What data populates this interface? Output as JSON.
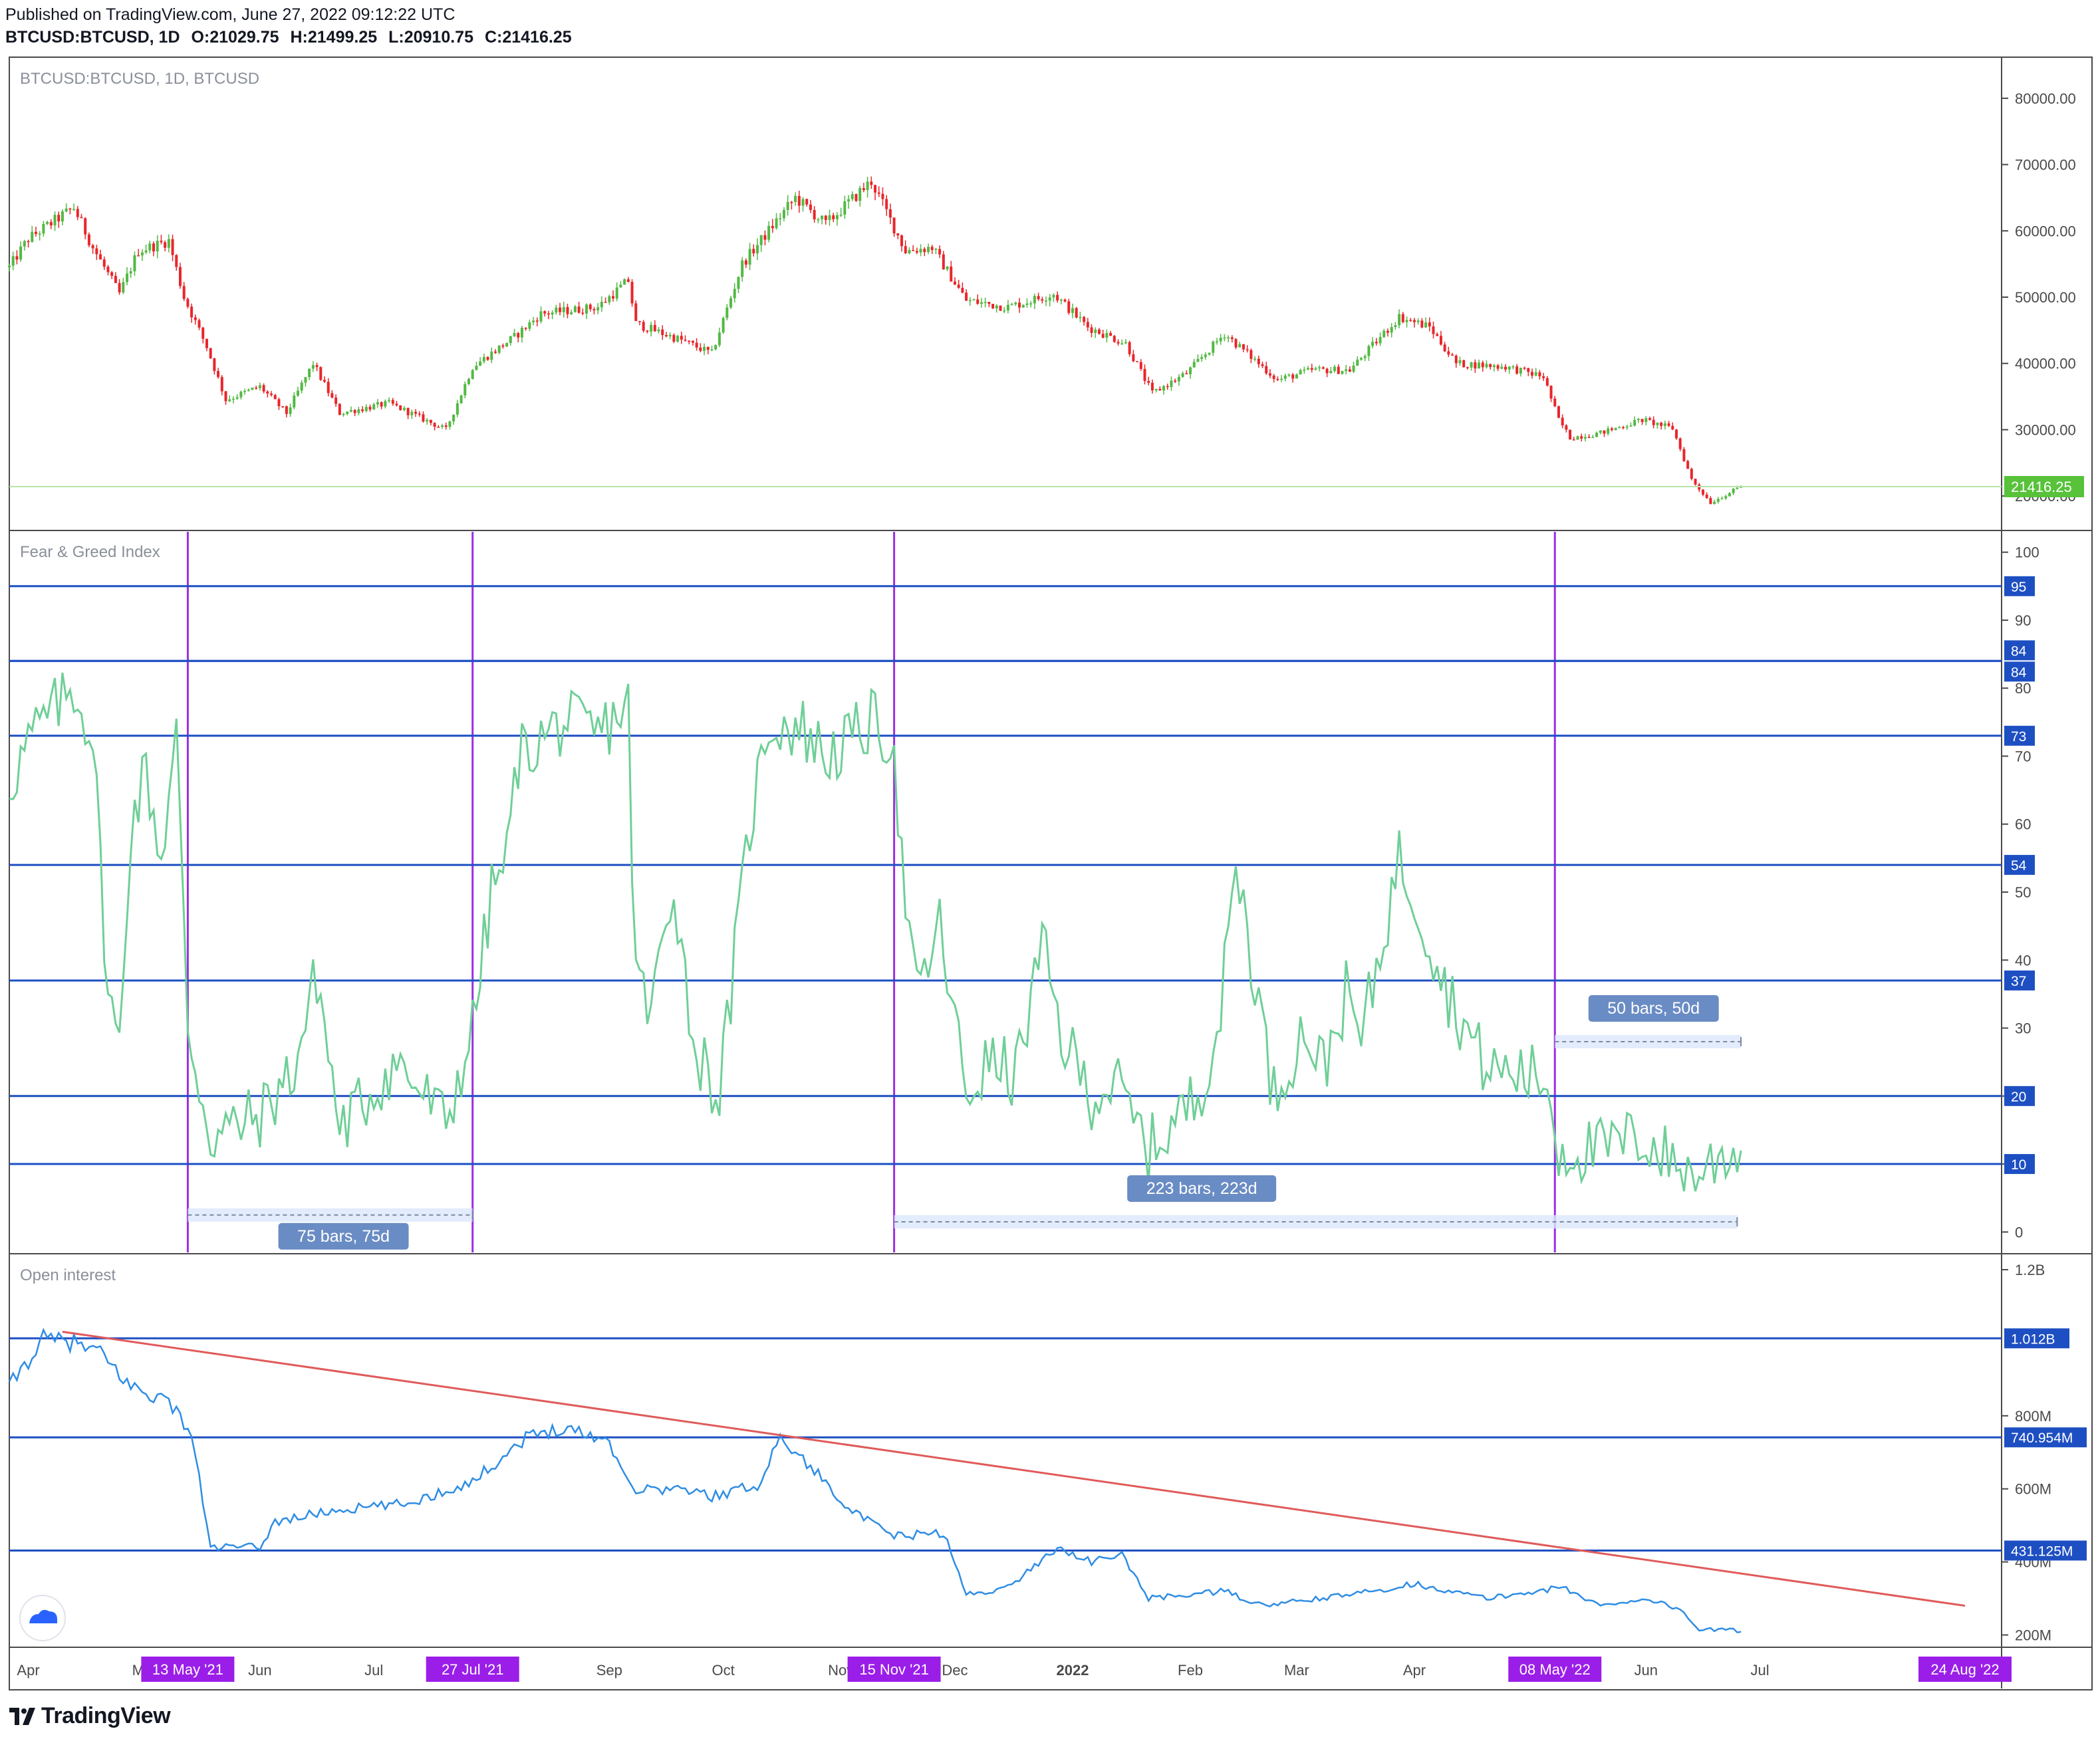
{
  "header": {
    "published": "Published on TradingView.com, June 27, 2022 09:12:22 UTC",
    "symbol": "BTCUSD:BTCUSD, 1D",
    "o_label": "O:",
    "o": "21029.75",
    "h_label": "H:",
    "h": "21499.25",
    "l_label": "L:",
    "l": "20910.75",
    "c_label": "C:",
    "c": "21416.25"
  },
  "brand": "TradingView",
  "colors": {
    "up": "#53b944",
    "down": "#e8262b",
    "fgi_line": "#6fcf97",
    "oi_line": "#2f8de4",
    "hline": "#1e4fc2",
    "vline": "#9b30e0",
    "trend": "#e05a5a",
    "price_label_bg": "#57c23a",
    "date_badge_bg": "#9b1ee8",
    "measure_badge_bg": "#6a8cc4"
  },
  "chart_data": [
    {
      "type": "candlestick",
      "title": "BTCUSD:BTCUSD, 1D, BTCUSD",
      "ylim": [
        15000,
        86000
      ],
      "y_ticks": [
        20000,
        30000,
        40000,
        50000,
        60000,
        70000,
        80000
      ],
      "y_tick_labels": [
        "20000.00",
        "30000.00",
        "40000.00",
        "50000.00",
        "60000.00",
        "70000.00",
        "80000.00"
      ],
      "last_price": 21416.25,
      "last_price_label": "21416.25",
      "x_start": "2021-03-27",
      "x_end": "2022-06-26",
      "anchors": [
        [
          "2021-03-27",
          54500
        ],
        [
          "2021-04-01",
          58800
        ],
        [
          "2021-04-13",
          63500
        ],
        [
          "2021-04-18",
          57500
        ],
        [
          "2021-04-25",
          50500
        ],
        [
          "2021-04-30",
          57000
        ],
        [
          "2021-05-08",
          58500
        ],
        [
          "2021-05-12",
          50000
        ],
        [
          "2021-05-18",
          42500
        ],
        [
          "2021-05-23",
          34500
        ],
        [
          "2021-06-01",
          36500
        ],
        [
          "2021-06-08",
          32500
        ],
        [
          "2021-06-15",
          40000
        ],
        [
          "2021-06-22",
          32500
        ],
        [
          "2021-07-05",
          34000
        ],
        [
          "2021-07-20",
          30000
        ],
        [
          "2021-07-27",
          39500
        ],
        [
          "2021-08-07",
          44000
        ],
        [
          "2021-08-14",
          47500
        ],
        [
          "2021-08-29",
          48500
        ],
        [
          "2021-09-06",
          52500
        ],
        [
          "2021-09-08",
          46000
        ],
        [
          "2021-09-20",
          43500
        ],
        [
          "2021-09-28",
          41500
        ],
        [
          "2021-10-06",
          55000
        ],
        [
          "2021-10-15",
          61500
        ],
        [
          "2021-10-20",
          65000
        ],
        [
          "2021-10-28",
          61000
        ],
        [
          "2021-11-09",
          67500
        ],
        [
          "2021-11-18",
          57000
        ],
        [
          "2021-11-25",
          57500
        ],
        [
          "2021-12-04",
          49500
        ],
        [
          "2021-12-15",
          48500
        ],
        [
          "2021-12-27",
          50500
        ],
        [
          "2022-01-05",
          45500
        ],
        [
          "2022-01-15",
          43000
        ],
        [
          "2022-01-22",
          35500
        ],
        [
          "2022-01-31",
          38500
        ],
        [
          "2022-02-10",
          44500
        ],
        [
          "2022-02-24",
          37500
        ],
        [
          "2022-03-05",
          39000
        ],
        [
          "2022-03-15",
          39000
        ],
        [
          "2022-03-28",
          47000
        ],
        [
          "2022-04-05",
          45500
        ],
        [
          "2022-04-12",
          40000
        ],
        [
          "2022-04-25",
          39500
        ],
        [
          "2022-05-05",
          38000
        ],
        [
          "2022-05-09",
          31500
        ],
        [
          "2022-05-12",
          28800
        ],
        [
          "2022-05-20",
          29500
        ],
        [
          "2022-05-31",
          31500
        ],
        [
          "2022-06-08",
          30200
        ],
        [
          "2022-06-13",
          22500
        ],
        [
          "2022-06-18",
          19000
        ],
        [
          "2022-06-26",
          21416
        ]
      ]
    },
    {
      "type": "line",
      "title": "Fear & Greed Index",
      "ylim": [
        -3,
        103
      ],
      "y_ticks": [
        0,
        10,
        20,
        30,
        40,
        50,
        60,
        70,
        80,
        90,
        100
      ],
      "hlines": [
        95,
        84,
        84,
        73,
        54,
        37,
        20,
        10
      ],
      "hline_labels": [
        "95",
        "84",
        "84",
        "73",
        "54",
        "37",
        "20",
        "10"
      ],
      "anchors": [
        [
          "2021-03-27",
          66
        ],
        [
          "2021-04-02",
          73
        ],
        [
          "2021-04-13",
          80
        ],
        [
          "2021-04-18",
          73
        ],
        [
          "2021-04-22",
          35
        ],
        [
          "2021-04-25",
          27
        ],
        [
          "2021-04-28",
          60
        ],
        [
          "2021-05-02",
          68
        ],
        [
          "2021-05-06",
          55
        ],
        [
          "2021-05-10",
          73
        ],
        [
          "2021-05-13",
          30
        ],
        [
          "2021-05-19",
          14
        ],
        [
          "2021-06-01",
          17
        ],
        [
          "2021-06-10",
          24
        ],
        [
          "2021-06-16",
          38
        ],
        [
          "2021-06-22",
          15
        ],
        [
          "2021-07-07",
          25
        ],
        [
          "2021-07-20",
          16
        ],
        [
          "2021-07-27",
          30
        ],
        [
          "2021-08-01",
          50
        ],
        [
          "2021-08-05",
          55
        ],
        [
          "2021-08-08",
          70
        ],
        [
          "2021-08-20",
          75
        ],
        [
          "2021-08-29",
          73
        ],
        [
          "2021-09-06",
          78
        ],
        [
          "2021-09-07",
          48
        ],
        [
          "2021-09-11",
          30
        ],
        [
          "2021-09-18",
          52
        ],
        [
          "2021-09-23",
          28
        ],
        [
          "2021-09-30",
          20
        ],
        [
          "2021-10-04",
          40
        ],
        [
          "2021-10-08",
          60
        ],
        [
          "2021-10-13",
          75
        ],
        [
          "2021-10-22",
          74
        ],
        [
          "2021-10-28",
          70
        ],
        [
          "2021-11-03",
          72
        ],
        [
          "2021-11-09",
          75
        ],
        [
          "2021-11-15",
          72
        ],
        [
          "2021-11-17",
          54
        ],
        [
          "2021-11-21",
          34
        ],
        [
          "2021-11-27",
          45
        ],
        [
          "2021-12-04",
          20
        ],
        [
          "2021-12-10",
          25
        ],
        [
          "2021-12-17",
          23
        ],
        [
          "2021-12-24",
          42
        ],
        [
          "2021-12-29",
          29
        ],
        [
          "2022-01-06",
          20
        ],
        [
          "2022-01-12",
          22
        ],
        [
          "2022-01-21",
          12
        ],
        [
          "2022-02-03",
          20
        ],
        [
          "2022-02-09",
          32
        ],
        [
          "2022-02-13",
          55
        ],
        [
          "2022-02-23",
          20
        ],
        [
          "2022-03-03",
          30
        ],
        [
          "2022-03-08",
          24
        ],
        [
          "2022-03-14",
          35
        ],
        [
          "2022-03-18",
          28
        ],
        [
          "2022-03-28",
          55
        ],
        [
          "2022-04-02",
          48
        ],
        [
          "2022-04-10",
          35
        ],
        [
          "2022-04-20",
          24
        ],
        [
          "2022-05-02",
          23
        ],
        [
          "2022-05-06",
          22
        ],
        [
          "2022-05-09",
          12
        ],
        [
          "2022-05-20",
          12
        ],
        [
          "2022-05-31",
          14
        ],
        [
          "2022-06-13",
          8
        ],
        [
          "2022-06-23",
          12
        ],
        [
          "2022-06-26",
          12
        ]
      ]
    },
    {
      "type": "line",
      "title": "Open interest",
      "ylim": [
        170,
        1240
      ],
      "y_ticks": [
        200,
        400,
        600,
        800,
        1200
      ],
      "y_tick_labels": [
        "200M",
        "400M",
        "600M",
        "800M",
        "1.2B"
      ],
      "y_units": "millions USD",
      "hlines": [
        1012,
        740.954,
        431.125
      ],
      "hline_labels": [
        "1.012B",
        "740.954M",
        "431.125M"
      ],
      "trendline": [
        [
          "2021-04-10",
          1030
        ],
        [
          "2022-08-24",
          280
        ]
      ],
      "anchors": [
        [
          "2021-03-27",
          880
        ],
        [
          "2021-04-05",
          1010
        ],
        [
          "2021-04-13",
          1000
        ],
        [
          "2021-04-20",
          970
        ],
        [
          "2021-04-28",
          880
        ],
        [
          "2021-05-08",
          840
        ],
        [
          "2021-05-14",
          750
        ],
        [
          "2021-05-19",
          440
        ],
        [
          "2021-06-01",
          440
        ],
        [
          "2021-06-05",
          510
        ],
        [
          "2021-06-20",
          540
        ],
        [
          "2021-07-10",
          560
        ],
        [
          "2021-07-27",
          620
        ],
        [
          "2021-08-10",
          740
        ],
        [
          "2021-08-20",
          770
        ],
        [
          "2021-09-01",
          730
        ],
        [
          "2021-09-07",
          600
        ],
        [
          "2021-09-20",
          600
        ],
        [
          "2021-09-28",
          580
        ],
        [
          "2021-10-10",
          610
        ],
        [
          "2021-10-16",
          740
        ],
        [
          "2021-10-24",
          660
        ],
        [
          "2021-11-05",
          530
        ],
        [
          "2021-11-15",
          470
        ],
        [
          "2021-11-28",
          480
        ],
        [
          "2021-12-04",
          310
        ],
        [
          "2021-12-15",
          330
        ],
        [
          "2021-12-28",
          440
        ],
        [
          "2022-01-06",
          400
        ],
        [
          "2022-01-14",
          420
        ],
        [
          "2022-01-21",
          300
        ],
        [
          "2022-02-10",
          320
        ],
        [
          "2022-02-20",
          280
        ],
        [
          "2022-03-15",
          310
        ],
        [
          "2022-04-01",
          340
        ],
        [
          "2022-04-20",
          300
        ],
        [
          "2022-05-10",
          330
        ],
        [
          "2022-05-20",
          280
        ],
        [
          "2022-06-01",
          300
        ],
        [
          "2022-06-10",
          270
        ],
        [
          "2022-06-15",
          215
        ],
        [
          "2022-06-26",
          212
        ]
      ]
    }
  ],
  "x_axis": {
    "labels": [
      {
        "date": "2021-04-01",
        "label": "Apr"
      },
      {
        "date": "2021-05-01",
        "label": "Ma"
      },
      {
        "date": "2021-06-01",
        "label": "Jun"
      },
      {
        "date": "2021-07-01",
        "label": "Jul"
      },
      {
        "date": "2021-09-01",
        "label": "Sep"
      },
      {
        "date": "2021-10-01",
        "label": "Oct"
      },
      {
        "date": "2021-11-01",
        "label": "Nov"
      },
      {
        "date": "2021-12-01",
        "label": "Dec"
      },
      {
        "date": "2022-01-01",
        "label": "2022"
      },
      {
        "date": "2022-02-01",
        "label": "Feb"
      },
      {
        "date": "2022-03-01",
        "label": "Mar"
      },
      {
        "date": "2022-04-01",
        "label": "Apr"
      },
      {
        "date": "2022-06-01",
        "label": "Jun"
      },
      {
        "date": "2022-07-01",
        "label": "Jul"
      }
    ],
    "date_badges": [
      {
        "date": "2021-05-13",
        "label": "13 May '21"
      },
      {
        "date": "2021-07-27",
        "label": "27 Jul '21"
      },
      {
        "date": "2021-11-15",
        "label": "15 Nov '21"
      },
      {
        "date": "2022-05-08",
        "label": "08 May '22"
      },
      {
        "date": "2022-08-24",
        "label": "24 Aug '22"
      }
    ]
  },
  "measurements": [
    {
      "from": "2021-05-13",
      "to": "2021-07-27",
      "label": "75 bars, 75d",
      "level": 2.5
    },
    {
      "from": "2021-11-15",
      "to": "2022-06-25",
      "label": "223 bars, 223d",
      "level": 1.5
    },
    {
      "from": "2022-05-08",
      "to": "2022-06-26",
      "label": "50 bars, 50d",
      "level": 28
    }
  ]
}
